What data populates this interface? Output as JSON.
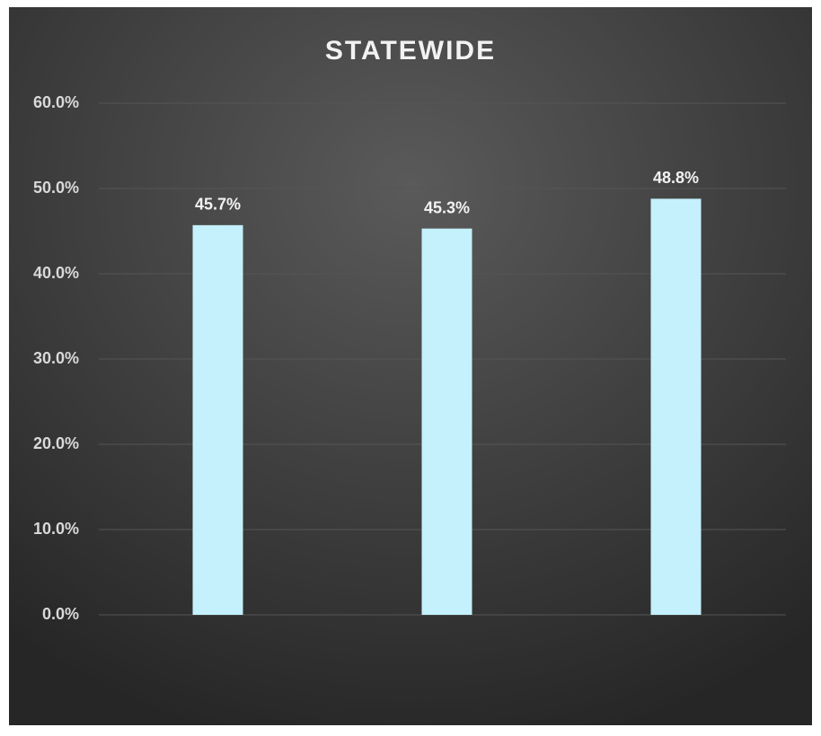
{
  "chart_data": {
    "type": "bar",
    "title": "STATEWIDE",
    "categories": [
      null,
      null,
      null
    ],
    "values": [
      45.7,
      45.3,
      48.8
    ],
    "value_labels": [
      "45.7%",
      "45.3%",
      "48.8%"
    ],
    "color": "#c4f1fb",
    "ylim": [
      0,
      60
    ],
    "yticks": [
      {
        "value": 0,
        "label": "0.0%"
      },
      {
        "value": 10,
        "label": "10.0%"
      },
      {
        "value": 20,
        "label": "20.0%"
      },
      {
        "value": 30,
        "label": "30.0%"
      },
      {
        "value": 40,
        "label": "40.0%"
      },
      {
        "value": 50,
        "label": "50.0%"
      },
      {
        "value": 60,
        "label": "60.0%"
      }
    ],
    "grid": true
  }
}
